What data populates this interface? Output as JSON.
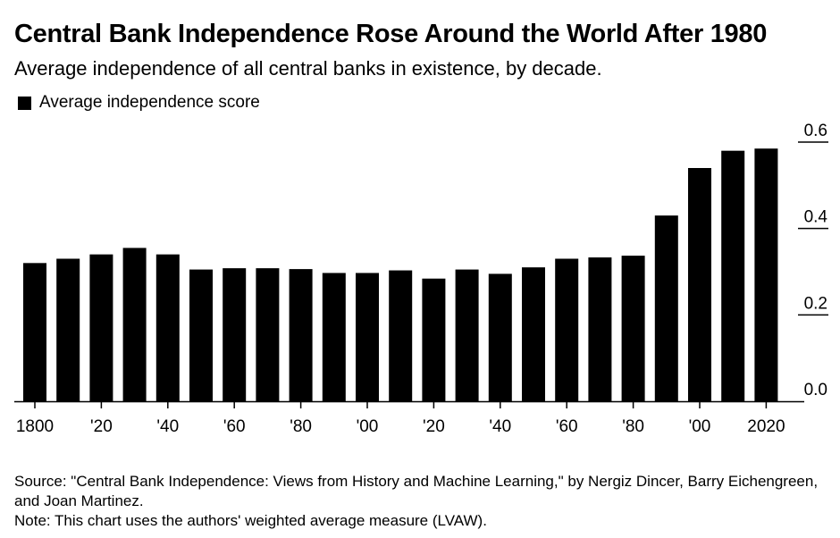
{
  "title": "Central Bank Independence Rose Around the World After 1980",
  "subtitle": "Average independence of all central banks in existence, by decade.",
  "source": "Source: \"Central Bank Independence: Views from History and Machine Learning,\" by Nergiz Dincer, Barry Eichengreen, and Joan Martinez.",
  "note": "Note: This chart uses the authors' weighted average measure (LVAW).",
  "colors": {
    "bar": "#000000",
    "background": "#ffffff"
  },
  "chart_data": {
    "type": "bar",
    "title": "Central Bank Independence Rose Around the World After 1980",
    "subtitle": "Average independence of all central banks in existence, by decade.",
    "xlabel": "",
    "ylabel": "",
    "legend": "top-left",
    "grid": false,
    "ylim": [
      0,
      0.6
    ],
    "yticks": [
      0.0,
      0.2,
      0.4,
      0.6
    ],
    "ytick_labels": [
      "0.0",
      "0.2",
      "0.4",
      "0.6"
    ],
    "categories": [
      "1800",
      "1810",
      "1820",
      "1830",
      "1840",
      "1850",
      "1860",
      "1870",
      "1880",
      "1890",
      "1900",
      "1910",
      "1920",
      "1930",
      "1940",
      "1950",
      "1960",
      "1970",
      "1980",
      "1990",
      "2000",
      "2010",
      "2020"
    ],
    "xtick_labels": [
      {
        "category": "1800",
        "label": "1800"
      },
      {
        "category": "1820",
        "label": "'20"
      },
      {
        "category": "1840",
        "label": "'40"
      },
      {
        "category": "1860",
        "label": "'60"
      },
      {
        "category": "1880",
        "label": "'80"
      },
      {
        "category": "1900",
        "label": "'00"
      },
      {
        "category": "1920",
        "label": "'20"
      },
      {
        "category": "1940",
        "label": "'40"
      },
      {
        "category": "1960",
        "label": "'60"
      },
      {
        "category": "1980",
        "label": "'80"
      },
      {
        "category": "2000",
        "label": "'00"
      },
      {
        "category": "2020",
        "label": "2020"
      }
    ],
    "series": [
      {
        "name": "Average independence score",
        "values": [
          0.32,
          0.33,
          0.34,
          0.355,
          0.34,
          0.305,
          0.308,
          0.308,
          0.306,
          0.297,
          0.297,
          0.303,
          0.284,
          0.305,
          0.295,
          0.31,
          0.33,
          0.333,
          0.337,
          0.43,
          0.54,
          0.58,
          0.585
        ]
      }
    ]
  }
}
